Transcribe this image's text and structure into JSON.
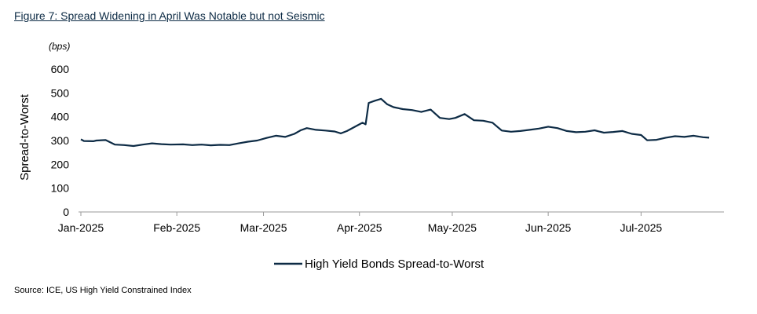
{
  "figure": {
    "title": "Figure 7: Spread Widening in April Was Notable but not Seismic",
    "source": "Source: ICE, US High Yield Constrained Index"
  },
  "colors": {
    "line": "#0d2b45",
    "axis": "#9a9a9a"
  },
  "chart_data": {
    "type": "line",
    "title": "",
    "unit": "(bps)",
    "ylabel": "Spread-to-Worst",
    "xlabel": "",
    "ylim": [
      0,
      600
    ],
    "yticks": [
      0,
      100,
      200,
      300,
      400,
      500,
      600
    ],
    "xlim": [
      "2025-01-01",
      "2025-07-24"
    ],
    "xticks": [
      {
        "date": "2025-01-01",
        "label": "Jan-2025"
      },
      {
        "date": "2025-02-01",
        "label": "Feb-2025"
      },
      {
        "date": "2025-03-01",
        "label": "Mar-2025"
      },
      {
        "date": "2025-04-01",
        "label": "Apr-2025"
      },
      {
        "date": "2025-05-01",
        "label": "May-2025"
      },
      {
        "date": "2025-06-01",
        "label": "Jun-2025"
      },
      {
        "date": "2025-07-01",
        "label": "Jul-2025"
      }
    ],
    "legend_position": "bottom",
    "grid": false,
    "series": [
      {
        "name": "High Yield Bonds Spread-to-Worst",
        "x": [
          "2025-01-01",
          "2025-01-02",
          "2025-01-05",
          "2025-01-06",
          "2025-01-09",
          "2025-01-12",
          "2025-01-15",
          "2025-01-18",
          "2025-01-21",
          "2025-01-24",
          "2025-01-27",
          "2025-01-30",
          "2025-02-03",
          "2025-02-06",
          "2025-02-09",
          "2025-02-12",
          "2025-02-15",
          "2025-02-18",
          "2025-02-21",
          "2025-02-24",
          "2025-02-27",
          "2025-03-02",
          "2025-03-05",
          "2025-03-08",
          "2025-03-11",
          "2025-03-13",
          "2025-03-15",
          "2025-03-18",
          "2025-03-21",
          "2025-03-24",
          "2025-03-26",
          "2025-03-28",
          "2025-04-01",
          "2025-04-02",
          "2025-04-03",
          "2025-04-04",
          "2025-04-06",
          "2025-04-08",
          "2025-04-10",
          "2025-04-12",
          "2025-04-15",
          "2025-04-18",
          "2025-04-21",
          "2025-04-24",
          "2025-04-27",
          "2025-04-30",
          "2025-05-02",
          "2025-05-05",
          "2025-05-08",
          "2025-05-11",
          "2025-05-14",
          "2025-05-17",
          "2025-05-20",
          "2025-05-23",
          "2025-05-26",
          "2025-05-29",
          "2025-06-01",
          "2025-06-04",
          "2025-06-07",
          "2025-06-10",
          "2025-06-13",
          "2025-06-16",
          "2025-06-19",
          "2025-06-22",
          "2025-06-25",
          "2025-06-28",
          "2025-07-01",
          "2025-07-03",
          "2025-07-06",
          "2025-07-09",
          "2025-07-12",
          "2025-07-15",
          "2025-07-18",
          "2025-07-21",
          "2025-07-23"
        ],
        "y": [
          305,
          298,
          297,
          300,
          302,
          283,
          281,
          277,
          283,
          288,
          285,
          283,
          284,
          281,
          283,
          280,
          282,
          281,
          288,
          295,
          300,
          311,
          320,
          315,
          328,
          343,
          352,
          345,
          342,
          338,
          330,
          340,
          368,
          375,
          368,
          458,
          467,
          475,
          452,
          440,
          432,
          428,
          420,
          430,
          395,
          390,
          395,
          411,
          385,
          383,
          375,
          342,
          337,
          340,
          345,
          350,
          358,
          352,
          340,
          335,
          337,
          343,
          333,
          336,
          340,
          328,
          323,
          301,
          303,
          312,
          318,
          315,
          320,
          314,
          312
        ]
      }
    ]
  }
}
